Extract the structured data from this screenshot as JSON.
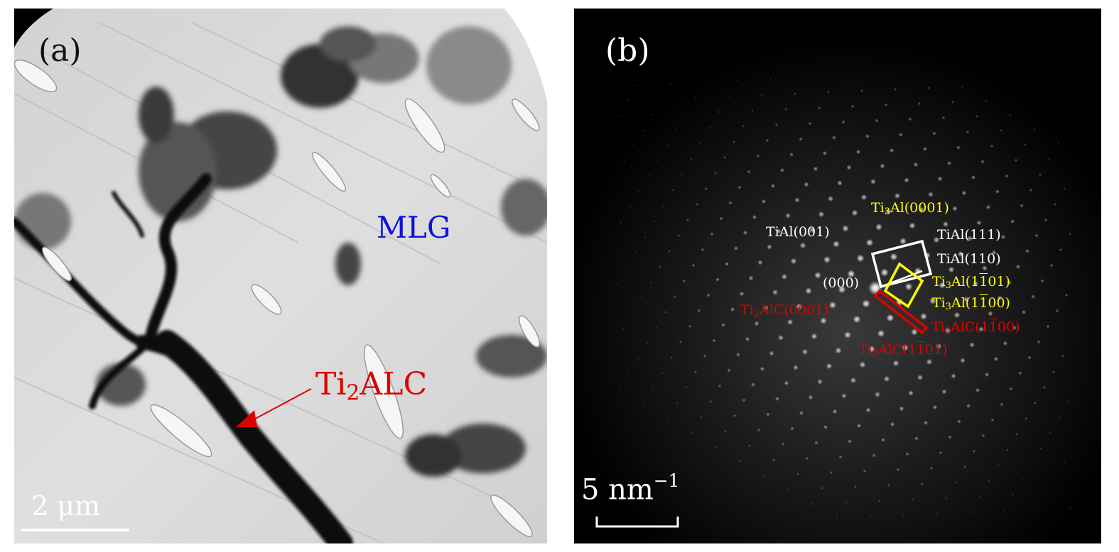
{
  "panel_a": {
    "letter": "(a)",
    "mlg_label": "MLG",
    "phase_label": {
      "base": "Ti",
      "sub": "2",
      "rest": "ALC"
    },
    "scale_bar": "2 μm",
    "colors": {
      "mlg": "#1010e0",
      "phase": "#dd0000",
      "arrow": "#dd0000"
    }
  },
  "panel_b": {
    "letter": "(b)",
    "scale_bar": {
      "base": "5 nm",
      "sup": "−1"
    },
    "origin": "(000)",
    "tial_001": "TiAl(001)",
    "tial_111": "TiAl(111)",
    "tial_110": "TiAl(110)",
    "ti3al_0001": {
      "base": "Ti",
      "sub": "3",
      "rest": "Al(0001)"
    },
    "ti3al_1101": {
      "base": "Ti",
      "sub": "3",
      "pre": "Al(1",
      "bar": "1",
      "post": "01)"
    },
    "ti3al_1100": {
      "base": "Ti",
      "sub": "3",
      "pre": "Al(1",
      "bar": "1",
      "post": "00)"
    },
    "ti2alc_0001": {
      "base": "Ti",
      "sub": "2",
      "rest": "AlC(0001)"
    },
    "ti2alc_1100": {
      "base": "Ti",
      "sub": "2",
      "pre": "AlC(1",
      "bar": "1",
      "post": "00)"
    },
    "ti2alc_1101": {
      "base": "Ti",
      "sub": "2",
      "pre": "AlC(1",
      "bar": "1",
      "post": "01)"
    },
    "colors": {
      "tial": "#ffffff",
      "ti3al": "#ffff00",
      "ti2alc": "#dd0000"
    }
  }
}
